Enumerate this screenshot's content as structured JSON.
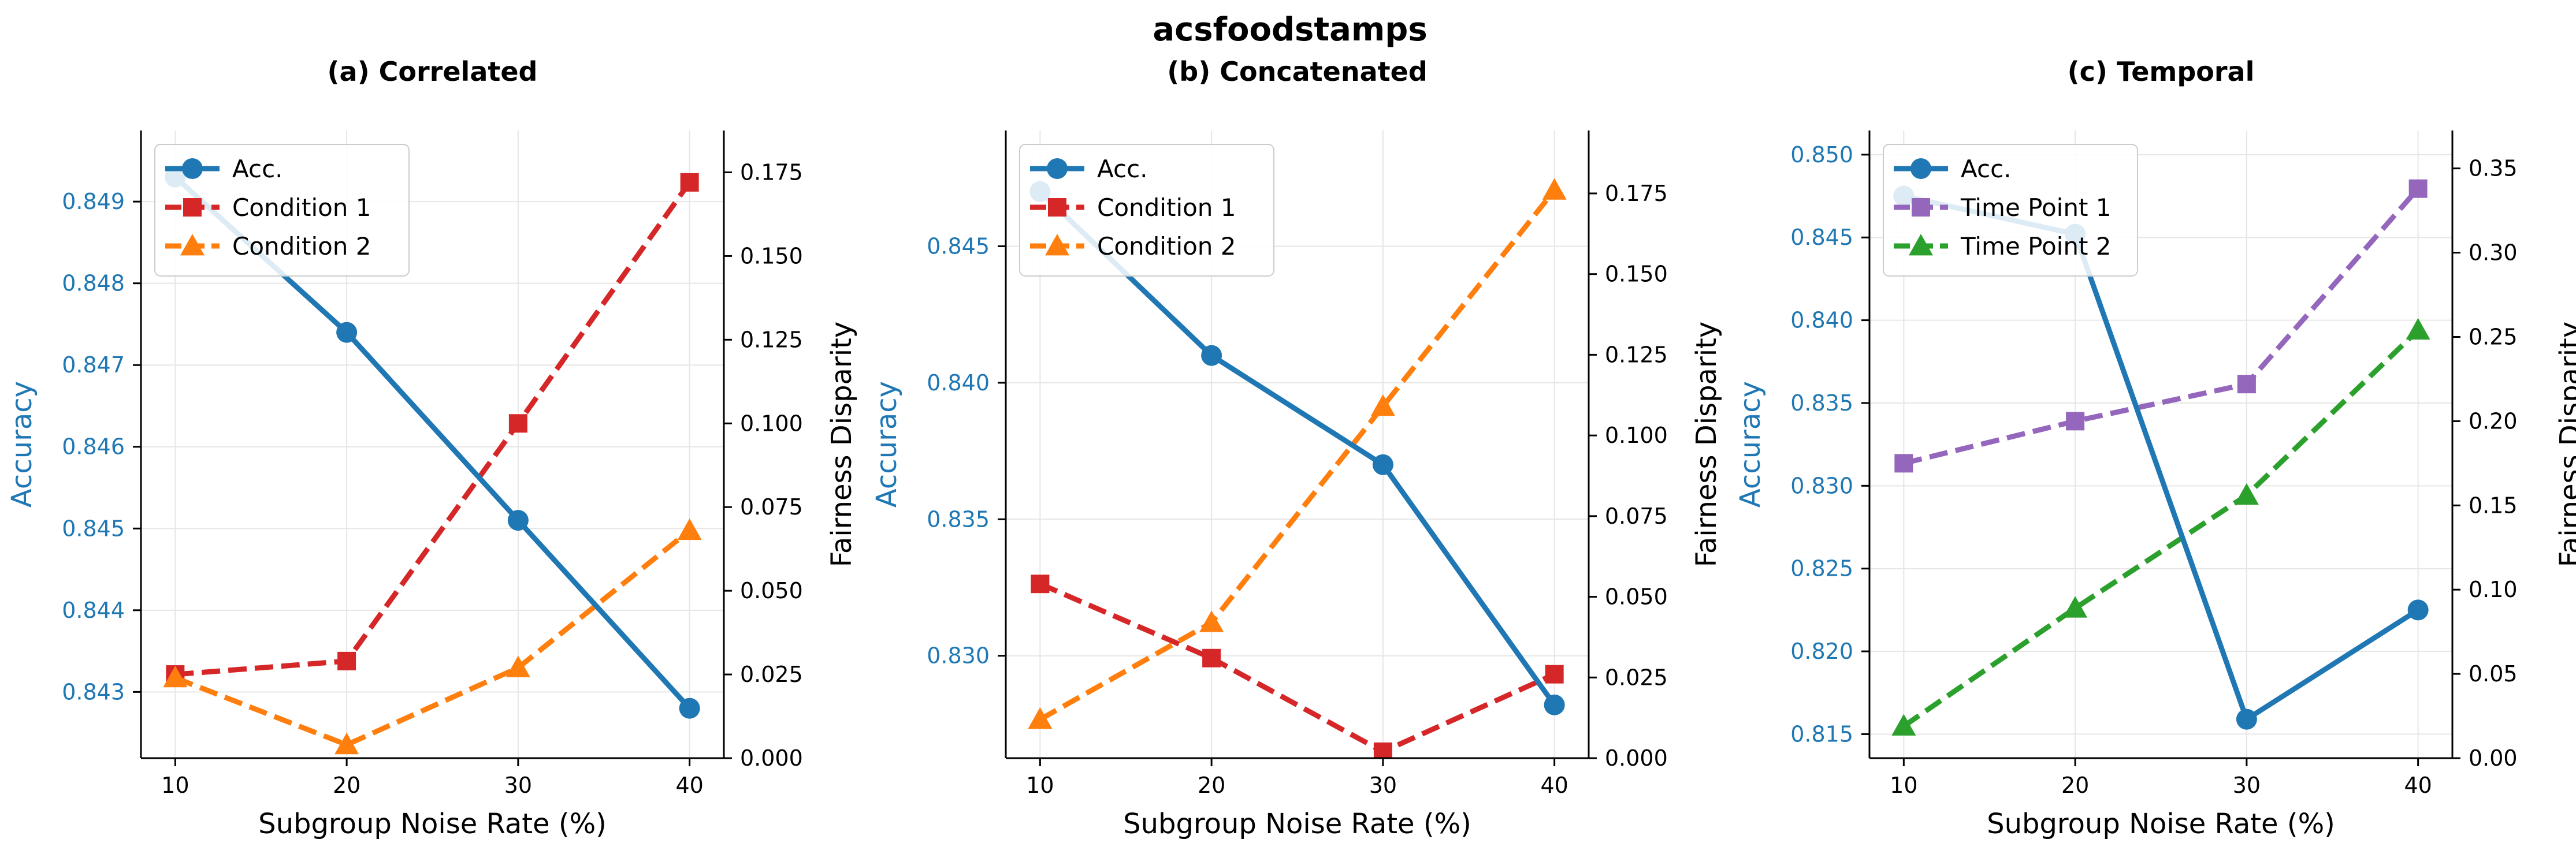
{
  "figure": {
    "title": "acsfoodstamps"
  },
  "colors": {
    "acc": "#1f77b4",
    "red": "#d62728",
    "orange": "#ff7f0e",
    "purple": "#9467bd",
    "green": "#2ca02c",
    "axis": "#000000",
    "grid": "#e6e6e6"
  },
  "chart_data": [
    {
      "type": "line",
      "title": "(a) Correlated",
      "xlabel": "Subgroup Noise Rate (%)",
      "ylabel": "Accuracy",
      "y2label": "Fairness Disparity",
      "x": [
        10,
        20,
        30,
        40
      ],
      "xticks": [
        "10",
        "20",
        "30",
        "40"
      ],
      "xlim": [
        8,
        42
      ],
      "ylim": [
        0.84219,
        0.84987
      ],
      "yticks": [
        "0.843",
        "0.844",
        "0.845",
        "0.846",
        "0.847",
        "0.848",
        "0.849"
      ],
      "y2lim": [
        0,
        0.1875
      ],
      "y2ticks": [
        "0.000",
        "0.025",
        "0.050",
        "0.075",
        "0.100",
        "0.125",
        "0.150",
        "0.175"
      ],
      "grid": true,
      "legend": "upper-left",
      "series": [
        {
          "name": "Acc.",
          "axis": "left",
          "marker": "circle",
          "dash": false,
          "color": "#1f77b4",
          "values": [
            0.8493,
            0.8474,
            0.8451,
            0.8428
          ]
        },
        {
          "name": "Condition 1",
          "axis": "right",
          "marker": "square",
          "dash": true,
          "color": "#d62728",
          "values": [
            0.025,
            0.029,
            0.1,
            0.172
          ]
        },
        {
          "name": "Condition 2",
          "axis": "right",
          "marker": "triangle",
          "dash": true,
          "color": "#ff7f0e",
          "values": [
            0.024,
            0.004,
            0.027,
            0.068
          ]
        }
      ]
    },
    {
      "type": "line",
      "title": "(b) Concatenated",
      "xlabel": "Subgroup Noise Rate (%)",
      "ylabel": "Accuracy",
      "y2label": "Fairness Disparity",
      "x": [
        10,
        20,
        30,
        40
      ],
      "xticks": [
        "10",
        "20",
        "30",
        "40"
      ],
      "xlim": [
        8,
        42
      ],
      "ylim": [
        0.82625,
        0.84924
      ],
      "yticks": [
        "0.830",
        "0.835",
        "0.840",
        "0.845"
      ],
      "y2lim": [
        0,
        0.1945
      ],
      "y2ticks": [
        "0.000",
        "0.025",
        "0.050",
        "0.075",
        "0.100",
        "0.125",
        "0.150",
        "0.175"
      ],
      "grid": true,
      "legend": "upper-left",
      "series": [
        {
          "name": "Acc.",
          "axis": "left",
          "marker": "circle",
          "dash": false,
          "color": "#1f77b4",
          "values": [
            0.847,
            0.841,
            0.837,
            0.8282
          ]
        },
        {
          "name": "Condition 1",
          "axis": "right",
          "marker": "square",
          "dash": true,
          "color": "#d62728",
          "values": [
            0.054,
            0.031,
            0.002,
            0.026
          ]
        },
        {
          "name": "Condition 2",
          "axis": "right",
          "marker": "triangle",
          "dash": true,
          "color": "#ff7f0e",
          "values": [
            0.012,
            0.042,
            0.109,
            0.176
          ]
        }
      ]
    },
    {
      "type": "line",
      "title": "(c) Temporal",
      "xlabel": "Subgroup Noise Rate (%)",
      "ylabel": "Accuracy",
      "y2label": "Fairness Disparity",
      "x": [
        10,
        20,
        30,
        40
      ],
      "xticks": [
        "10",
        "20",
        "30",
        "40"
      ],
      "xlim": [
        8,
        42
      ],
      "ylim": [
        0.81355,
        0.85146
      ],
      "yticks": [
        "0.815",
        "0.820",
        "0.825",
        "0.830",
        "0.835",
        "0.840",
        "0.845",
        "0.850"
      ],
      "y2lim": [
        0,
        0.3725
      ],
      "y2ticks": [
        "0.00",
        "0.05",
        "0.10",
        "0.15",
        "0.20",
        "0.25",
        "0.30",
        "0.35"
      ],
      "grid": true,
      "legend": "upper-left",
      "series": [
        {
          "name": "Acc.",
          "axis": "left",
          "marker": "circle",
          "dash": false,
          "color": "#1f77b4",
          "values": [
            0.8475,
            0.8452,
            0.8159,
            0.8225
          ]
        },
        {
          "name": "Time Point 1",
          "axis": "right",
          "marker": "square",
          "dash": true,
          "color": "#9467bd",
          "values": [
            0.175,
            0.2,
            0.222,
            0.338
          ]
        },
        {
          "name": "Time Point 2",
          "axis": "right",
          "marker": "triangle",
          "dash": true,
          "color": "#2ca02c",
          "values": [
            0.019,
            0.089,
            0.156,
            0.254
          ]
        }
      ]
    }
  ]
}
